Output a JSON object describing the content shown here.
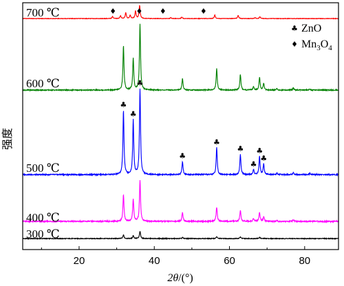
{
  "chart_data": {
    "type": "line",
    "xlabel_italic": "2θ",
    "xlabel_rest": "/(°)",
    "ylabel": "强度",
    "xlim": [
      5,
      89
    ],
    "xticks": [
      20,
      40,
      60,
      80
    ],
    "legend": {
      "placement": "top-right",
      "entries": [
        {
          "symbol": "♣",
          "name": "ZnO"
        },
        {
          "symbol": "♦",
          "name": "Mn3O4",
          "parts": [
            "Mn",
            "3",
            "O",
            "4"
          ]
        }
      ]
    },
    "series": [
      {
        "name": "300 ℃",
        "color": "#000000",
        "peaks": [
          [
            31.8,
            0.18
          ],
          [
            34.4,
            0.15
          ],
          [
            36.2,
            0.35
          ],
          [
            47.5,
            0.05
          ],
          [
            56.6,
            0.09
          ],
          [
            62.9,
            0.08
          ],
          [
            68.0,
            0.06
          ]
        ]
      },
      {
        "name": "400 ℃",
        "color": "#ff00ff",
        "peaks": [
          [
            31.8,
            0.78
          ],
          [
            34.4,
            0.65
          ],
          [
            36.2,
            1.2
          ],
          [
            47.5,
            0.26
          ],
          [
            56.6,
            0.42
          ],
          [
            62.9,
            0.32
          ],
          [
            66.4,
            0.08
          ],
          [
            68.0,
            0.26
          ],
          [
            69.1,
            0.14
          ],
          [
            72.6,
            0.03
          ],
          [
            77.0,
            0.04
          ]
        ]
      },
      {
        "name": "500 ℃",
        "color": "#0000ff",
        "peaks": [
          [
            31.8,
            1.95
          ],
          [
            34.4,
            1.65
          ],
          [
            36.2,
            2.6
          ],
          [
            47.5,
            0.4
          ],
          [
            56.6,
            0.82
          ],
          [
            62.9,
            0.62
          ],
          [
            66.4,
            0.15
          ],
          [
            68.0,
            0.55
          ],
          [
            69.1,
            0.32
          ],
          [
            72.6,
            0.05
          ],
          [
            77.0,
            0.07
          ],
          [
            81.4,
            0.04
          ],
          [
            89.6,
            0.06
          ]
        ],
        "zno_markers": [
          31.8,
          34.4,
          36.2,
          47.5,
          56.6,
          62.9,
          66.4,
          68.0,
          69.1
        ]
      },
      {
        "name": "600 ℃",
        "color": "#008000",
        "peaks": [
          [
            31.8,
            1.6
          ],
          [
            34.4,
            1.15
          ],
          [
            36.2,
            2.4
          ],
          [
            47.5,
            0.42
          ],
          [
            56.6,
            0.78
          ],
          [
            62.9,
            0.58
          ],
          [
            66.4,
            0.12
          ],
          [
            68.0,
            0.46
          ],
          [
            69.1,
            0.24
          ],
          [
            72.6,
            0.05
          ],
          [
            77.0,
            0.08
          ],
          [
            81.4,
            0.04
          ],
          [
            89.6,
            0.07
          ]
        ]
      },
      {
        "name": "700 ℃",
        "color": "#ff0000",
        "peaks": [
          [
            28.9,
            0.14
          ],
          [
            31.0,
            0.2
          ],
          [
            32.4,
            0.42
          ],
          [
            33.6,
            0.25
          ],
          [
            35.0,
            0.55
          ],
          [
            36.1,
            0.95
          ],
          [
            44.4,
            0.06
          ],
          [
            47.3,
            0.09
          ],
          [
            56.1,
            0.26
          ],
          [
            62.3,
            0.24
          ],
          [
            66.8,
            0.07
          ],
          [
            68.1,
            0.14
          ]
        ],
        "mn3o4_markers": [
          29.0,
          36.0,
          42.3,
          53.1
        ]
      }
    ]
  }
}
